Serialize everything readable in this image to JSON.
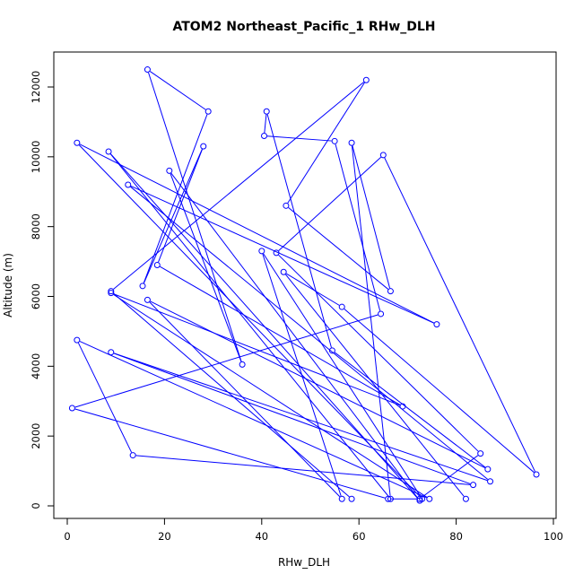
{
  "chart_data": {
    "type": "line",
    "title": "ATOM2 Northeast_Pacific_1 RHw_DLH",
    "xlabel": "RHw_DLH",
    "ylabel": "Altitude (m)",
    "xlim": [
      0,
      100
    ],
    "ylim": [
      0,
      12500
    ],
    "xticks": [
      0,
      20,
      40,
      60,
      80,
      100
    ],
    "yticks": [
      0,
      2000,
      4000,
      6000,
      8000,
      10000,
      12000
    ],
    "grid": false,
    "legend": "none",
    "color": "#0000ff",
    "series": [
      {
        "marker": "open-circle",
        "points": [
          [
            58.5,
            200
          ],
          [
            9.0,
            6150
          ],
          [
            61.5,
            12200
          ],
          [
            45.0,
            8600
          ],
          [
            66.5,
            6150
          ],
          [
            58.5,
            10400
          ],
          [
            66.5,
            200
          ],
          [
            8.5,
            10150
          ],
          [
            72.5,
            150
          ],
          [
            21.0,
            9600
          ],
          [
            36.0,
            4050
          ],
          [
            16.5,
            12500
          ],
          [
            29.0,
            11300
          ],
          [
            15.5,
            6300
          ],
          [
            28.0,
            10300
          ],
          [
            18.5,
            6900
          ],
          [
            69.0,
            2850
          ],
          [
            9.0,
            6100
          ],
          [
            74.5,
            200
          ],
          [
            2.0,
            4750
          ],
          [
            13.5,
            1450
          ],
          [
            83.5,
            600
          ],
          [
            9.0,
            4400
          ],
          [
            87.0,
            700
          ],
          [
            12.5,
            9200
          ],
          [
            76.0,
            5200
          ],
          [
            2.0,
            10400
          ],
          [
            73.0,
            200
          ],
          [
            40.0,
            7300
          ],
          [
            56.5,
            200
          ],
          [
            16.5,
            5900
          ],
          [
            86.5,
            1050
          ],
          [
            54.5,
            4450
          ],
          [
            41.0,
            11300
          ],
          [
            40.5,
            10600
          ],
          [
            55.0,
            10450
          ],
          [
            64.5,
            5500
          ],
          [
            1.0,
            2800
          ],
          [
            66.0,
            200
          ],
          [
            72.5,
            200
          ],
          [
            85.0,
            1500
          ],
          [
            43.0,
            7250
          ],
          [
            65.0,
            10050
          ],
          [
            96.5,
            900
          ],
          [
            56.5,
            5700
          ],
          [
            44.5,
            6700
          ],
          [
            82.0,
            200
          ]
        ]
      }
    ]
  }
}
